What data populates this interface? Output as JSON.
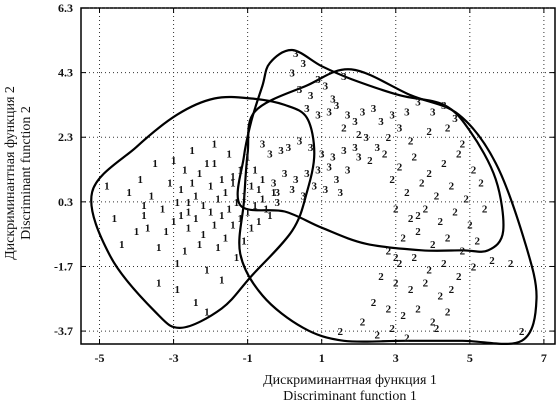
{
  "chart_data": {
    "type": "scatter",
    "title": "",
    "xlabel": [
      "Дискриминантная функция 1",
      "Discriminant function 1"
    ],
    "ylabel": [
      "Дискриминантная функция 2",
      "Discriminant function 2"
    ],
    "xlim": [
      -5.5,
      7.3
    ],
    "ylim": [
      -4.1,
      6.3
    ],
    "xticks": [
      -5,
      -3,
      -1,
      1,
      3,
      5,
      7
    ],
    "yticks": [
      6.3,
      4.3,
      2.3,
      0.3,
      -1.7,
      -3.7
    ],
    "ytick_labels": [
      "6.3",
      "4.3",
      "2.3",
      "0.3",
      "-1.7",
      "-3.7"
    ],
    "grid": true,
    "series": [
      {
        "marker": "1",
        "points": [
          [
            -4.8,
            0.8
          ],
          [
            -4.6,
            -0.2
          ],
          [
            -4.4,
            -1.0
          ],
          [
            -4.2,
            0.6
          ],
          [
            -4.0,
            -0.6
          ],
          [
            -3.9,
            1.0
          ],
          [
            -3.8,
            0.2
          ],
          [
            -3.7,
            -0.5
          ],
          [
            -3.6,
            0.5
          ],
          [
            -3.5,
            1.5
          ],
          [
            -3.4,
            -1.1
          ],
          [
            -3.3,
            0.1
          ],
          [
            -3.2,
            -0.6
          ],
          [
            -3.1,
            0.9
          ],
          [
            -3.0,
            1.6
          ],
          [
            -3.0,
            -0.3
          ],
          [
            -2.9,
            0.3
          ],
          [
            -2.9,
            -1.6
          ],
          [
            -2.8,
            -0.1
          ],
          [
            -2.8,
            0.7
          ],
          [
            -2.7,
            1.3
          ],
          [
            -2.7,
            -1.2
          ],
          [
            -2.6,
            0.0
          ],
          [
            -2.6,
            -0.5
          ],
          [
            -2.5,
            0.9
          ],
          [
            -2.5,
            1.9
          ],
          [
            -2.4,
            -0.2
          ],
          [
            -2.4,
            0.5
          ],
          [
            -2.3,
            -1.0
          ],
          [
            -2.3,
            1.2
          ],
          [
            -2.2,
            0.2
          ],
          [
            -2.2,
            -0.7
          ],
          [
            -2.1,
            1.5
          ],
          [
            -2.1,
            -1.8
          ],
          [
            -2.0,
            0.0
          ],
          [
            -2.0,
            0.8
          ],
          [
            -1.9,
            -0.4
          ],
          [
            -1.9,
            2.1
          ],
          [
            -1.8,
            0.4
          ],
          [
            -1.8,
            -1.1
          ],
          [
            -1.7,
            1.0
          ],
          [
            -1.7,
            -0.1
          ],
          [
            -1.6,
            0.6
          ],
          [
            -1.6,
            -0.8
          ],
          [
            -1.5,
            1.8
          ],
          [
            -1.5,
            0.1
          ],
          [
            -1.4,
            -0.4
          ],
          [
            -1.4,
            0.9
          ],
          [
            -1.3,
            -1.4
          ],
          [
            -1.3,
            0.3
          ],
          [
            -1.2,
            1.3
          ],
          [
            -1.2,
            -0.2
          ],
          [
            -1.1,
            0.5
          ],
          [
            -1.1,
            -0.9
          ],
          [
            -1.0,
            1.7
          ],
          [
            -1.0,
            0.0
          ],
          [
            -0.9,
            0.8
          ],
          [
            -0.9,
            -0.5
          ],
          [
            -0.8,
            1.3
          ],
          [
            -0.8,
            0.2
          ],
          [
            -0.7,
            -0.3
          ],
          [
            -0.7,
            0.7
          ],
          [
            -0.6,
            0.4
          ],
          [
            -0.6,
            1.0
          ],
          [
            -0.5,
            0.1
          ],
          [
            -0.4,
            -0.1
          ],
          [
            -0.3,
            0.6
          ],
          [
            -2.4,
            -2.8
          ],
          [
            -2.9,
            -2.4
          ],
          [
            -2.1,
            -3.1
          ],
          [
            -3.4,
            -2.2
          ],
          [
            -1.7,
            -2.1
          ],
          [
            -1.9,
            1.5
          ],
          [
            -3.8,
            -0.1
          ],
          [
            -2.6,
            0.3
          ],
          [
            -1.4,
            1.1
          ]
        ]
      },
      {
        "marker": "3",
        "points": [
          [
            0.3,
            4.9
          ],
          [
            0.5,
            4.6
          ],
          [
            0.2,
            4.3
          ],
          [
            0.4,
            3.8
          ],
          [
            0.7,
            3.6
          ],
          [
            0.9,
            4.1
          ],
          [
            1.1,
            3.9
          ],
          [
            1.3,
            3.5
          ],
          [
            1.6,
            4.2
          ],
          [
            0.6,
            3.2
          ],
          [
            0.9,
            3.0
          ],
          [
            1.2,
            3.1
          ],
          [
            1.4,
            3.3
          ],
          [
            1.7,
            3.0
          ],
          [
            1.9,
            2.8
          ],
          [
            2.1,
            3.1
          ],
          [
            2.4,
            3.2
          ],
          [
            2.6,
            2.8
          ],
          [
            2.9,
            3.0
          ],
          [
            3.3,
            3.1
          ],
          [
            3.6,
            3.4
          ],
          [
            4.0,
            3.1
          ],
          [
            4.3,
            3.3
          ],
          [
            4.6,
            2.9
          ],
          [
            3.1,
            2.6
          ],
          [
            2.2,
            2.3
          ],
          [
            1.9,
            2.0
          ],
          [
            1.6,
            1.9
          ],
          [
            1.3,
            1.7
          ],
          [
            1.0,
            1.8
          ],
          [
            0.7,
            2.0
          ],
          [
            0.4,
            2.2
          ],
          [
            0.1,
            2.0
          ],
          [
            -0.1,
            1.9
          ],
          [
            -0.4,
            1.8
          ],
          [
            -0.6,
            2.1
          ],
          [
            0.6,
            1.2
          ],
          [
            0.3,
            1.0
          ],
          [
            0.9,
            1.3
          ],
          [
            0.0,
            1.2
          ],
          [
            -0.3,
            0.9
          ],
          [
            -0.2,
            0.6
          ],
          [
            0.5,
            0.5
          ],
          [
            0.8,
            0.8
          ],
          [
            1.1,
            0.7
          ],
          [
            1.4,
            1.0
          ],
          [
            1.7,
            1.3
          ],
          [
            2.0,
            1.7
          ],
          [
            1.2,
            1.4
          ],
          [
            0.2,
            0.7
          ],
          [
            -0.2,
            0.3
          ],
          [
            2.5,
            2.0
          ],
          [
            1.5,
            0.6
          ]
        ]
      },
      {
        "marker": "2",
        "points": [
          [
            1.6,
            2.6
          ],
          [
            2.0,
            2.4
          ],
          [
            2.8,
            2.3
          ],
          [
            3.4,
            2.2
          ],
          [
            3.9,
            2.5
          ],
          [
            4.4,
            2.6
          ],
          [
            4.8,
            2.1
          ],
          [
            2.3,
            1.6
          ],
          [
            2.7,
            1.8
          ],
          [
            3.1,
            1.4
          ],
          [
            3.5,
            1.7
          ],
          [
            3.9,
            1.2
          ],
          [
            4.3,
            1.5
          ],
          [
            4.7,
            1.8
          ],
          [
            5.1,
            1.3
          ],
          [
            2.9,
            1.0
          ],
          [
            3.3,
            0.6
          ],
          [
            3.7,
            0.9
          ],
          [
            4.1,
            0.5
          ],
          [
            4.5,
            0.8
          ],
          [
            4.9,
            0.4
          ],
          [
            5.3,
            0.9
          ],
          [
            3.0,
            0.1
          ],
          [
            3.4,
            -0.2
          ],
          [
            3.8,
            0.1
          ],
          [
            4.2,
            -0.3
          ],
          [
            4.6,
            0.0
          ],
          [
            5.0,
            -0.4
          ],
          [
            5.4,
            0.1
          ],
          [
            3.2,
            -0.8
          ],
          [
            3.6,
            -0.6
          ],
          [
            4.0,
            -1.0
          ],
          [
            4.4,
            -0.8
          ],
          [
            4.8,
            -1.2
          ],
          [
            5.2,
            -0.9
          ],
          [
            2.8,
            -1.2
          ],
          [
            3.1,
            -1.6
          ],
          [
            3.5,
            -1.4
          ],
          [
            3.9,
            -1.8
          ],
          [
            4.3,
            -1.6
          ],
          [
            4.7,
            -2.0
          ],
          [
            5.1,
            -1.7
          ],
          [
            2.6,
            -2.0
          ],
          [
            3.0,
            -2.2
          ],
          [
            3.4,
            -2.4
          ],
          [
            3.8,
            -2.2
          ],
          [
            4.2,
            -2.6
          ],
          [
            2.4,
            -2.8
          ],
          [
            2.8,
            -3.0
          ],
          [
            3.2,
            -3.2
          ],
          [
            3.6,
            -3.0
          ],
          [
            4.0,
            -3.4
          ],
          [
            4.4,
            -3.1
          ],
          [
            1.5,
            -3.7
          ],
          [
            2.1,
            -3.4
          ],
          [
            2.5,
            -3.8
          ],
          [
            2.9,
            -3.6
          ],
          [
            3.3,
            -3.9
          ],
          [
            4.1,
            -3.6
          ],
          [
            6.1,
            -1.6
          ],
          [
            6.4,
            -3.7
          ],
          [
            5.6,
            -1.5
          ],
          [
            3.6,
            -0.1
          ],
          [
            3.0,
            -1.4
          ],
          [
            4.5,
            -2.4
          ]
        ]
      }
    ],
    "group_boundaries": [
      {
        "group": "1",
        "points": [
          [
            -5.2,
            0.6
          ],
          [
            -4.7,
            -1.4
          ],
          [
            -3.5,
            -3.1
          ],
          [
            -2.8,
            -3.6
          ],
          [
            -1.7,
            -3.0
          ],
          [
            -0.9,
            -2.0
          ],
          [
            0.2,
            -0.6
          ],
          [
            0.6,
            0.6
          ],
          [
            0.8,
            1.8
          ],
          [
            0.6,
            2.9
          ],
          [
            0.0,
            3.3
          ],
          [
            -0.9,
            3.5
          ],
          [
            -1.9,
            3.5
          ],
          [
            -2.9,
            3.0
          ],
          [
            -4.0,
            2.0
          ]
        ]
      },
      {
        "group": "3",
        "points": [
          [
            0.2,
            5.0
          ],
          [
            1.0,
            4.5
          ],
          [
            1.8,
            4.1
          ],
          [
            3.1,
            3.6
          ],
          [
            4.3,
            3.3
          ],
          [
            5.0,
            2.5
          ],
          [
            5.7,
            1.0
          ],
          [
            5.9,
            -0.6
          ],
          [
            5.5,
            -1.2
          ],
          [
            4.8,
            -1.2
          ],
          [
            3.7,
            -1.2
          ],
          [
            2.2,
            -1.0
          ],
          [
            1.0,
            -0.5
          ],
          [
            0.0,
            0.0
          ],
          [
            -1.2,
            0.2
          ],
          [
            -1.1,
            1.7
          ],
          [
            -0.9,
            2.8
          ],
          [
            -0.6,
            3.9
          ],
          [
            -0.4,
            4.6
          ]
        ]
      },
      {
        "group": "2",
        "points": [
          [
            -0.8,
            3.1
          ],
          [
            0.6,
            3.9
          ],
          [
            1.8,
            4.4
          ],
          [
            3.4,
            3.6
          ],
          [
            4.7,
            3.0
          ],
          [
            5.7,
            1.5
          ],
          [
            6.5,
            -1.0
          ],
          [
            6.8,
            -2.7
          ],
          [
            6.4,
            -4.0
          ],
          [
            4.8,
            -4.0
          ],
          [
            3.2,
            -4.0
          ],
          [
            1.6,
            -4.0
          ],
          [
            0.5,
            -3.6
          ],
          [
            -0.6,
            -2.6
          ],
          [
            -1.2,
            -1.3
          ],
          [
            -1.1,
            0.3
          ],
          [
            -1.0,
            1.8
          ]
        ]
      }
    ]
  }
}
